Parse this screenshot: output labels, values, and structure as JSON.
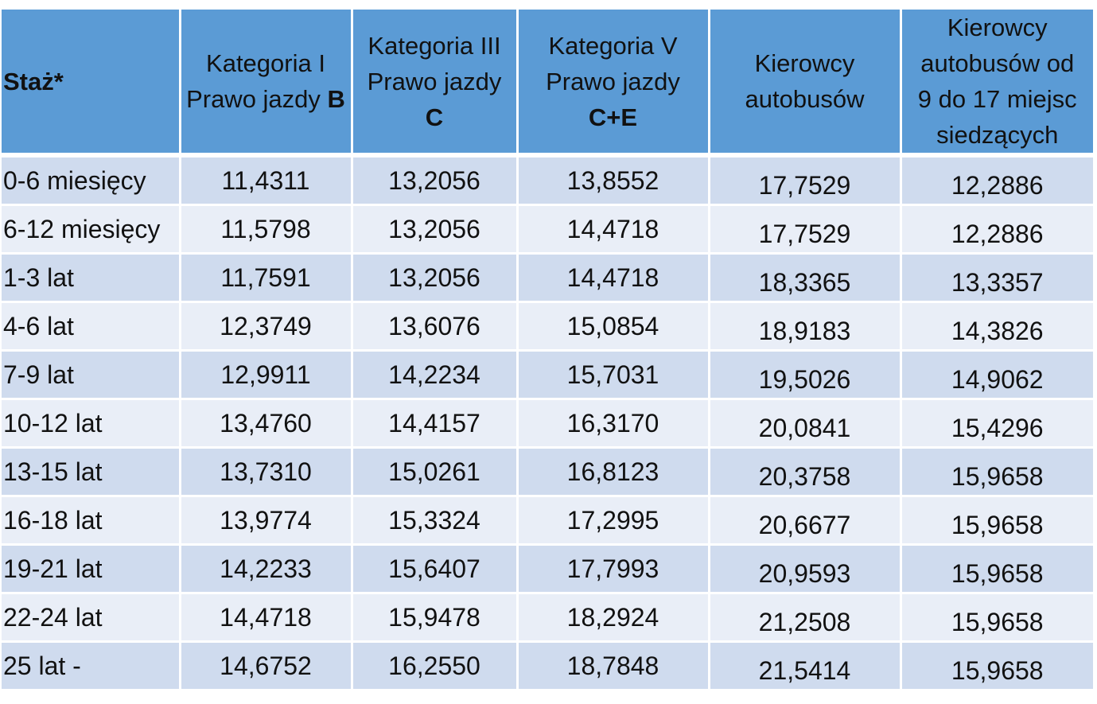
{
  "header": {
    "staz": "Staż*",
    "cat1": {
      "line1": "Kategoria I",
      "line2_prefix": "Prawo jazdy ",
      "line2_bold": "B"
    },
    "cat3": {
      "line1": "Kategoria III",
      "line2": "Prawo jazdy",
      "line3_bold": "C"
    },
    "cat5": {
      "line1": "Kategoria V",
      "line2": "Prawo jazdy",
      "line3_bold": "C+E"
    },
    "bus": {
      "line1": "Kierowcy",
      "line2": "autobusów"
    },
    "bus_small": {
      "line1": "Kierowcy",
      "line2": "autobusów od",
      "line3": "9 do 17 miejsc",
      "line4": "siedzących"
    }
  },
  "rows": [
    [
      "0-6 miesięcy",
      "11,4311",
      "13,2056",
      "13,8552",
      "17,7529",
      "12,2886"
    ],
    [
      "6-12 miesięcy",
      "11,5798",
      "13,2056",
      "14,4718",
      "17,7529",
      "12,2886"
    ],
    [
      "1-3 lat",
      "11,7591",
      "13,2056",
      "14,4718",
      "18,3365",
      "13,3357"
    ],
    [
      "4-6 lat",
      "12,3749",
      "13,6076",
      "15,0854",
      "18,9183",
      "14,3826"
    ],
    [
      "7-9 lat",
      "12,9911",
      "14,2234",
      "15,7031",
      "19,5026",
      "14,9062"
    ],
    [
      "10-12 lat",
      "13,4760",
      "14,4157",
      "16,3170",
      "20,0841",
      "15,4296"
    ],
    [
      "13-15 lat",
      "13,7310",
      "15,0261",
      "16,8123",
      "20,3758",
      "15,9658"
    ],
    [
      "16-18 lat",
      "13,9774",
      "15,3324",
      "17,2995",
      "20,6677",
      "15,9658"
    ],
    [
      "19-21 lat",
      "14,2233",
      "15,6407",
      "17,7993",
      "20,9593",
      "15,9658"
    ],
    [
      "22-24 lat",
      "14,4718",
      "15,9478",
      "18,2924",
      "21,2508",
      "15,9658"
    ],
    [
      "25 lat -",
      "14,6752",
      "16,2550",
      "18,7848",
      "21,5414",
      "15,9658"
    ]
  ],
  "colors": {
    "header_bg": "#5b9bd5",
    "row_dark": "#cfdbee",
    "row_light": "#e9eef7",
    "grid_lines": "#ffffff"
  }
}
